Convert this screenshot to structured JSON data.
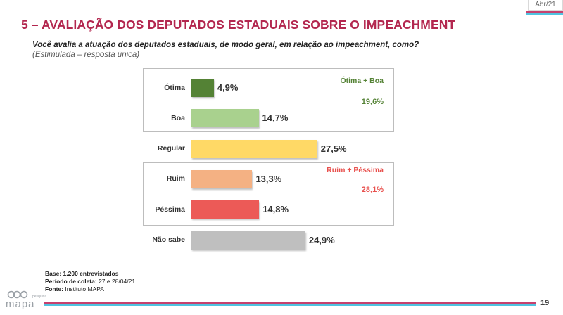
{
  "header": {
    "date": "Abr/21",
    "title": "5 – AVALIAÇÃO DOS DEPUTADOS ESTADUAIS SOBRE O IMPEACHMENT",
    "question": "Você avalia a atuação dos deputados estaduais, de modo geral, em relação ao impeachment, como?",
    "subtitle": "(Estimulada – resposta única)"
  },
  "chart_data": {
    "type": "bar",
    "orientation": "horizontal",
    "categories": [
      "Ótima",
      "Boa",
      "Regular",
      "Ruim",
      "Péssima",
      "Não sabe"
    ],
    "values": [
      4.9,
      14.7,
      27.5,
      13.3,
      14.8,
      24.9
    ],
    "value_labels": [
      "4,9%",
      "14,7%",
      "27,5%",
      "13,3%",
      "14,8%",
      "24,9%"
    ],
    "colors": [
      "#548235",
      "#a9d18e",
      "#ffd966",
      "#f4b183",
      "#ec5a57",
      "#bfbfbf"
    ],
    "groups": [
      {
        "label": "Ótima + Boa",
        "value": "19,6%",
        "color": "#548235"
      },
      {
        "label": "Ruim + Péssima",
        "value": "28,1%",
        "color": "#e8504d"
      }
    ]
  },
  "footer": {
    "base_label": "Base:",
    "base_value": "1.200 entrevistados",
    "period_label": "Período de coleta:",
    "period_value": "27 e 28/04/21",
    "source_label": "Fonte:",
    "source_value": "Instituto MAPA"
  },
  "logo": {
    "text": "mapa",
    "sub": "pesquisa"
  },
  "page_number": "19"
}
